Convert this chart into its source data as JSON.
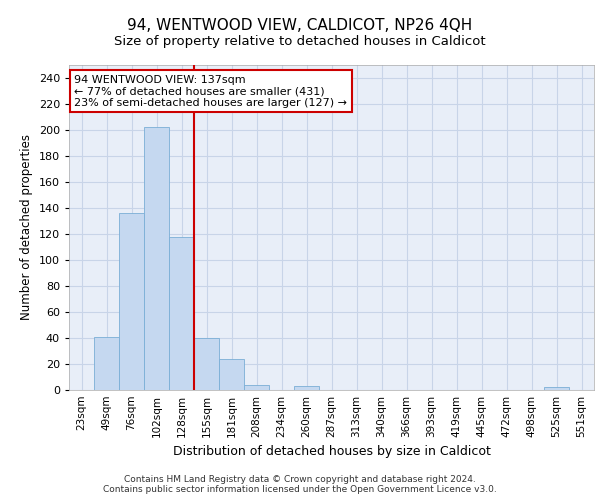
{
  "title1": "94, WENTWOOD VIEW, CALDICOT, NP26 4QH",
  "title2": "Size of property relative to detached houses in Caldicot",
  "xlabel": "Distribution of detached houses by size in Caldicot",
  "ylabel": "Number of detached properties",
  "footer1": "Contains HM Land Registry data © Crown copyright and database right 2024.",
  "footer2": "Contains public sector information licensed under the Open Government Licence v3.0.",
  "annotation_line1": "94 WENTWOOD VIEW: 137sqm",
  "annotation_line2": "← 77% of detached houses are smaller (431)",
  "annotation_line3": "23% of semi-detached houses are larger (127) →",
  "bar_labels": [
    "23sqm",
    "49sqm",
    "76sqm",
    "102sqm",
    "128sqm",
    "155sqm",
    "181sqm",
    "208sqm",
    "234sqm",
    "260sqm",
    "287sqm",
    "313sqm",
    "340sqm",
    "366sqm",
    "393sqm",
    "419sqm",
    "445sqm",
    "472sqm",
    "498sqm",
    "525sqm",
    "551sqm"
  ],
  "bar_values": [
    0,
    41,
    136,
    202,
    118,
    40,
    24,
    4,
    0,
    3,
    0,
    0,
    0,
    0,
    0,
    0,
    0,
    0,
    0,
    2,
    0
  ],
  "bar_color": "#c5d8f0",
  "bar_edge_color": "#7aaed6",
  "grid_color": "#c8d4e8",
  "plot_bg_color": "#e8eef8",
  "fig_bg_color": "#ffffff",
  "vline_x": 4.5,
  "vline_color": "#cc0000",
  "ylim": [
    0,
    250
  ],
  "yticks": [
    0,
    20,
    40,
    60,
    80,
    100,
    120,
    140,
    160,
    180,
    200,
    220,
    240
  ],
  "annotation_box_facecolor": "#ffffff",
  "annotation_box_edgecolor": "#cc0000",
  "title1_fontsize": 11,
  "title2_fontsize": 9.5,
  "ylabel_fontsize": 8.5,
  "xlabel_fontsize": 9,
  "tick_fontsize": 8,
  "xtick_fontsize": 7.5,
  "annotation_fontsize": 8,
  "footer_fontsize": 6.5
}
